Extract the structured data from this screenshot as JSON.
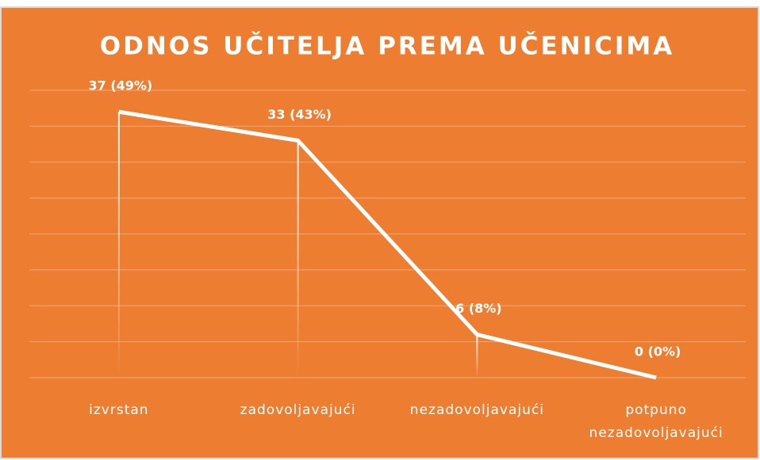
{
  "chart_data": {
    "type": "line",
    "title": "ODNOS UČITELJA PREMA UČENICIMA",
    "categories": [
      "izvrstan",
      "zadovoljavajući",
      "nezadovoljavajući",
      "potpuno nezadovoljavajući"
    ],
    "values": [
      37,
      33,
      6,
      0
    ],
    "value_labels": [
      "37 (49%)",
      "33 (43%)",
      "6 (8%)",
      "0 (0%)"
    ],
    "color": "#ffffff",
    "background": "#ed7d31",
    "ylim": [
      0,
      40
    ],
    "yticks": [
      0,
      5,
      10,
      15,
      20,
      25,
      30,
      35,
      40
    ],
    "grid": true
  }
}
